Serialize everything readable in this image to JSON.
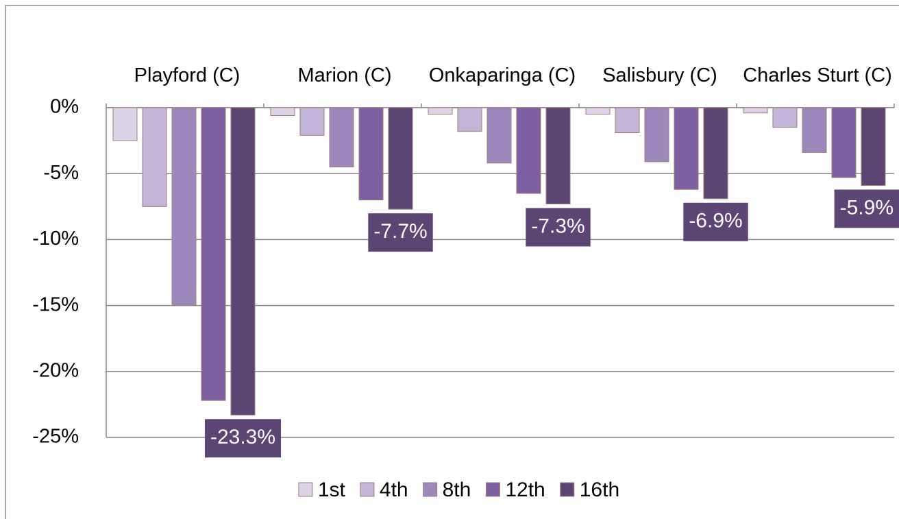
{
  "chart_data": {
    "type": "bar",
    "categories": [
      "Playford (C)",
      "Marion (C)",
      "Onkaparinga (C)",
      "Salisbury (C)",
      "Charles Sturt (C)"
    ],
    "series": [
      {
        "name": "1st",
        "color": "#ddd3e8",
        "values": [
          -2.5,
          -0.6,
          -0.5,
          -0.5,
          -0.4
        ]
      },
      {
        "name": "4th",
        "color": "#c3b4d9",
        "values": [
          -7.5,
          -2.1,
          -1.8,
          -1.9,
          -1.5
        ]
      },
      {
        "name": "8th",
        "color": "#9d88be",
        "values": [
          -15.0,
          -4.5,
          -4.2,
          -4.1,
          -3.4
        ]
      },
      {
        "name": "12th",
        "color": "#7e5fa1",
        "values": [
          -22.2,
          -7.0,
          -6.5,
          -6.2,
          -5.3
        ]
      },
      {
        "name": "16th",
        "color": "#5c4475",
        "values": [
          -23.3,
          -7.7,
          -7.3,
          -6.9,
          -5.9
        ],
        "value_labels": [
          "-23.3%",
          "-7.7%",
          "-7.3%",
          "-6.9%",
          "-5.9%"
        ]
      }
    ],
    "ylim": [
      -25,
      0
    ],
    "yticks": [
      {
        "value": 0,
        "label": "0%"
      },
      {
        "value": -5,
        "label": "-5%"
      },
      {
        "value": -10,
        "label": "-10%"
      },
      {
        "value": -15,
        "label": "-15%"
      },
      {
        "value": -20,
        "label": "-20%"
      },
      {
        "value": -25,
        "label": "-25%"
      }
    ],
    "grid": true,
    "legend": "bottom"
  }
}
